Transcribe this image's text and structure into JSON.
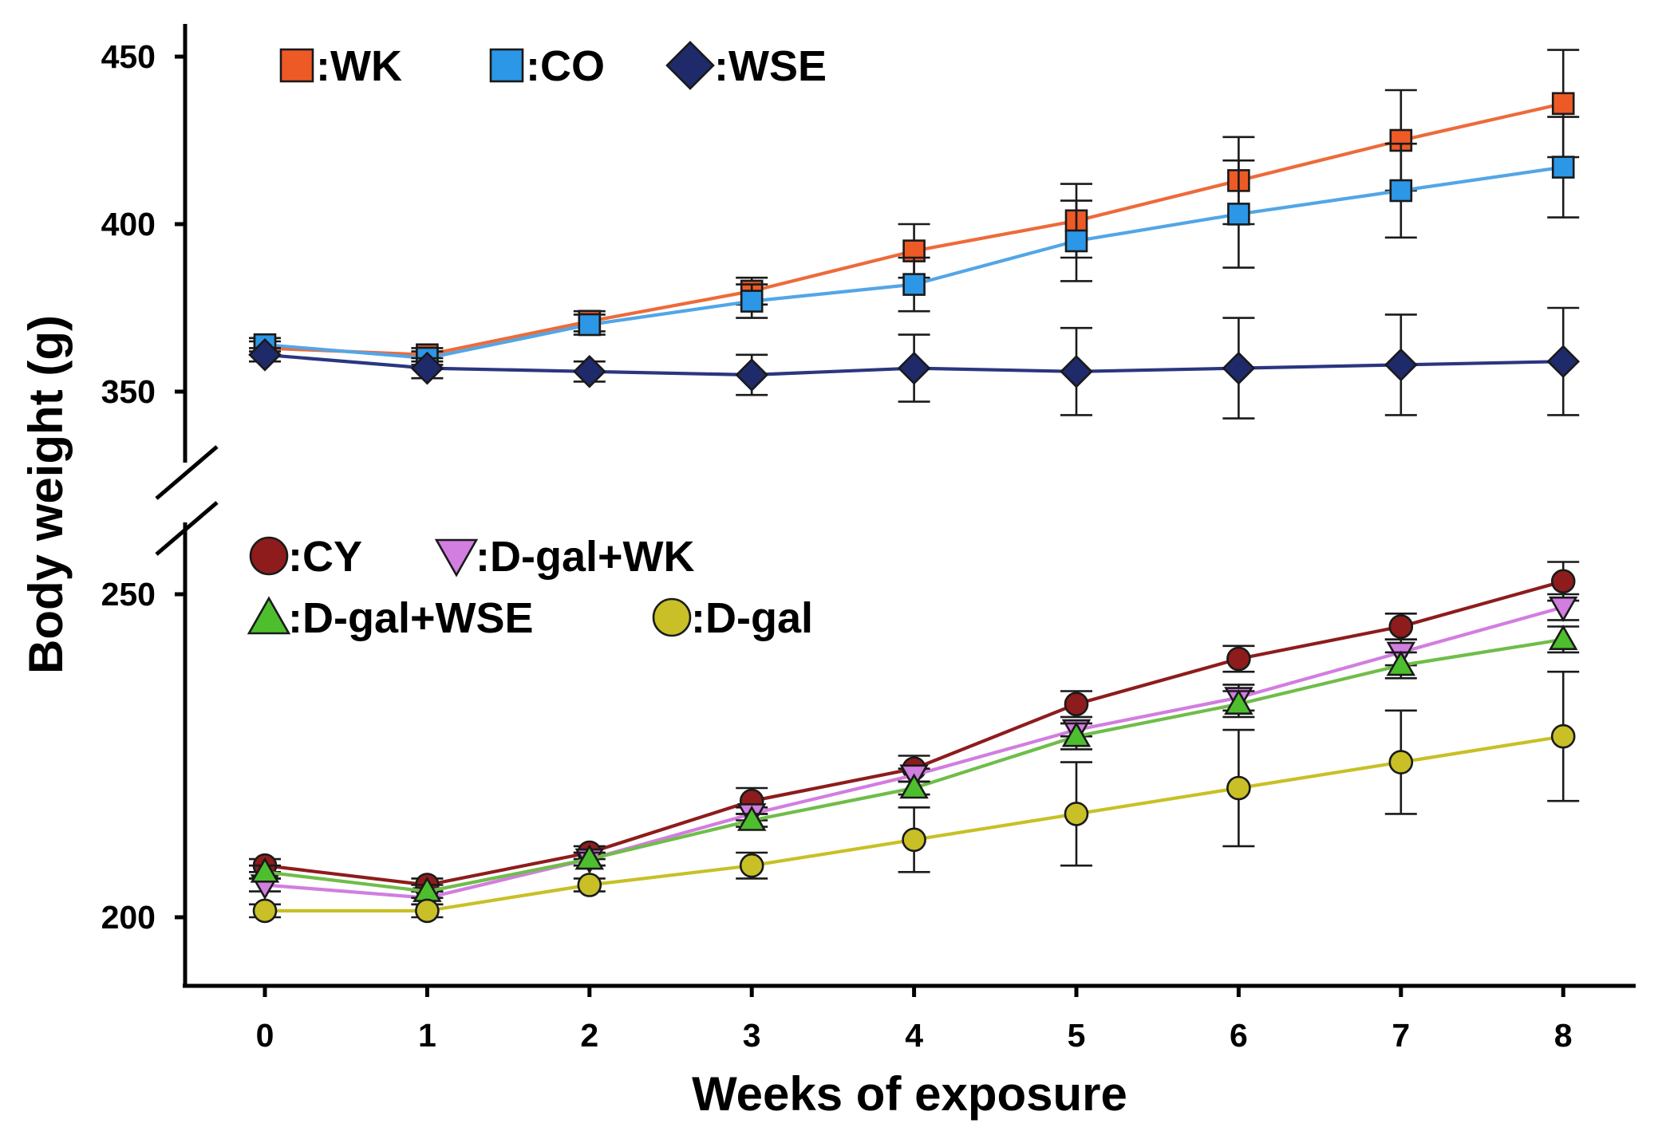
{
  "chart_data": {
    "type": "line",
    "xlabel": "Weeks of exposure",
    "ylabel": "Body weight (g)",
    "x": [
      0,
      1,
      2,
      3,
      4,
      5,
      6,
      7,
      8
    ],
    "x_tick_labels": [
      "0",
      "1",
      "2",
      "3",
      "4",
      "5",
      "6",
      "7",
      "8"
    ],
    "axis_break": true,
    "panels": [
      {
        "name": "upper",
        "ylim": [
          330,
          460
        ],
        "y_ticks": [
          350,
          400,
          450
        ],
        "y_tick_labels": [
          "350",
          "400",
          "450"
        ],
        "series": [
          {
            "name": ":WK",
            "marker": "square",
            "fill": "#ee5a26",
            "line": "#ee6a3a",
            "values": [
              363,
              361,
              371,
              380,
              392,
              401,
              413,
              425,
              436
            ],
            "errors": [
              2,
              2,
              3,
              4,
              8,
              11,
              13,
              15,
              16
            ]
          },
          {
            "name": ":CO",
            "marker": "square",
            "fill": "#2b97e6",
            "line": "#52a6e6",
            "values": [
              364,
              360,
              370,
              377,
              382,
              395,
              403,
              410,
              417
            ],
            "errors": [
              2,
              2,
              3,
              5,
              8,
              12,
              16,
              14,
              15
            ]
          },
          {
            "name": ":WSE",
            "marker": "diamond",
            "fill": "#1f2a6b",
            "line": "#2b3680",
            "values": [
              361,
              357,
              356,
              355,
              357,
              356,
              357,
              358,
              359
            ],
            "errors": [
              2,
              3,
              3,
              6,
              10,
              13,
              15,
              15,
              16
            ]
          }
        ]
      },
      {
        "name": "lower",
        "ylim": [
          190,
          262
        ],
        "y_ticks": [
          200,
          250
        ],
        "y_tick_labels": [
          "200",
          "250"
        ],
        "series": [
          {
            "name": ":CY",
            "marker": "circle",
            "fill": "#8e1c1c",
            "line": "#8e1c1c",
            "values": [
              208,
              205,
              210,
              218,
              223,
              233,
              240,
              245,
              252
            ],
            "errors": [
              1,
              1,
              1,
              2,
              2,
              2,
              2,
              2,
              3
            ]
          },
          {
            "name": ":D-gal+WK",
            "marker": "triangle-down",
            "fill": "#d27de0",
            "line": "#d27de0",
            "values": [
              205,
              203,
              209,
              216,
              222,
              229,
              234,
              241,
              248
            ],
            "errors": [
              1,
              1,
              1,
              1,
              1,
              1,
              2,
              2,
              2
            ]
          },
          {
            "name": ":D-gal+WSE",
            "marker": "triangle-up",
            "fill": "#4dbf2e",
            "line": "#6fbd4a",
            "values": [
              207,
              204,
              209,
              215,
              220,
              228,
              233,
              239,
              243
            ],
            "errors": [
              1,
              1,
              1,
              1,
              1,
              2,
              2,
              2,
              2
            ]
          },
          {
            "name": ":D-gal",
            "marker": "circle",
            "fill": "#c8c026",
            "line": "#c8c026",
            "values": [
              201,
              201,
              205,
              208,
              212,
              216,
              220,
              224,
              228
            ],
            "errors": [
              1,
              1,
              1,
              2,
              5,
              8,
              9,
              8,
              10
            ]
          }
        ]
      }
    ]
  }
}
